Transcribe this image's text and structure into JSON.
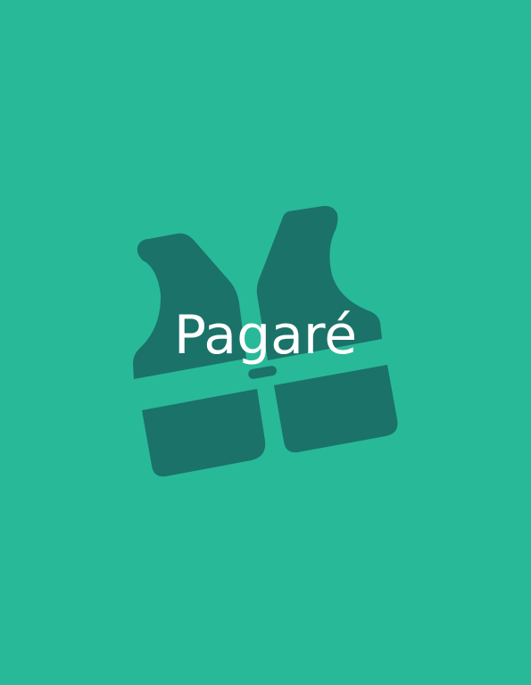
{
  "cover": {
    "title": "Pagaré",
    "background_color": "#28b999",
    "icon_color": "#1b7268",
    "icon": "life-vest-icon"
  }
}
